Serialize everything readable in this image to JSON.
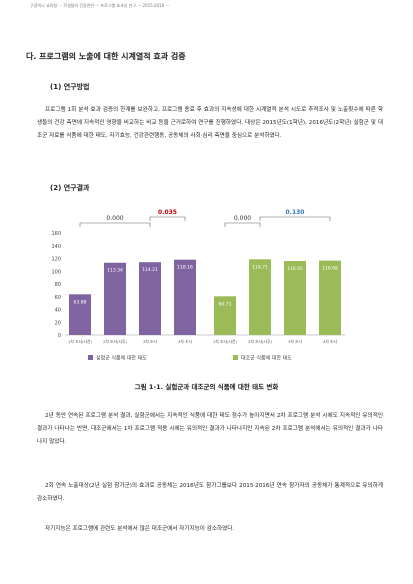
{
  "header_line": "구광역시 교육청 ··· 학생들의 건강관련 ··· 프로그램 효과성 연구 ··· 2015·2016 ···",
  "section_heading": "다. 프로그램의 노출에 대한 시계열적 효과 검증",
  "subsection1": {
    "heading": "(1) 연구방법",
    "text": "프로그램 1회 분석 효과 검증의 한계를 보완하고, 프로그램 종료 후 효과의 지속성에 대한 시계열적 분석 시도로 추적조사 및 노출횟수에 따른 학생들의 건강 측면에 지속적인 영향을 비교하는 비교 등을 근거로하여 연구를 진행하였다. 대상은 2015년도(1학년), 2016년도(2학년) 실험군 및 대조군 자료를 식품에 대한 태도, 자기효능, 건강관련행동, 공동체의 사회·심리 측면을 중심으로 분석하였다."
  },
  "subsection2": {
    "heading": "(2) 연구결과"
  },
  "chart_data": {
    "type": "bar",
    "groups": [
      {
        "name": "실험군 식품에 대한 태도",
        "color": "#8064a2",
        "categories": [
          "1차 조사(사전)",
          "2차 조사(사후)",
          "3차 조사",
          "4차 조사"
        ],
        "values": [
          63.88,
          113.34,
          114.21,
          118.16
        ],
        "value_labels": [
          "63.88",
          "113.34",
          "114.21",
          "118.16"
        ],
        "annotations": [
          {
            "text": "0.000",
            "color": "#333333",
            "from": 0,
            "to": 2
          },
          {
            "text": "0.035",
            "color": "#c00000",
            "from": 2,
            "to": 3
          }
        ]
      },
      {
        "name": "대조군 식품에 대한 태도",
        "color": "#9bbb59",
        "categories": [
          "1차 조사(사전)",
          "2차 조사(사후)",
          "3차 조사",
          "4차 조사"
        ],
        "values": [
          60.71,
          118.71,
          116.05,
          116.68
        ],
        "value_labels": [
          "60.71",
          "118.71",
          "116.05",
          "116.68"
        ],
        "annotations": [
          {
            "text": "0.000",
            "color": "#333333",
            "from": 0,
            "to": 1
          },
          {
            "text": "0.130",
            "color": "#2e75b6",
            "from": 1,
            "to": 3
          }
        ]
      }
    ],
    "ylim": [
      0,
      160
    ],
    "yticks": [
      0,
      20,
      40,
      60,
      80,
      100,
      120,
      140,
      160
    ],
    "legend_position": "bottom",
    "grid": false
  },
  "figure_caption": "그림 1-1. 실험군과 대조군의 식품에 대한 태도 변화",
  "paragraphs": [
    "2년 동안 연속된 프로그램 분석 결과, 실험군에서는 지속적인 식품에 대한 태도 점수가 높아지면서 2차 프로그램 분석 시에도 지속적인 유의적인 결과가 나타나는 반면, 대조군에서는 1차 프로그램 적용 시에는 유의적인 결과가 나타나지만 지속된 2차 프로그램 분석에서는 유의적인 결과가 나타나지 않았다.",
    "2회 연속 노출대상(2년 실험 참가군)의 효과로 공동체는 2016년도 참가그룹보다 2015·2016년 연속 참가자의 공동체가 통계적으로 유의하게 감소하였다.",
    "자기지능은 프로그램에 관련도 분석에서 많은 대조군에서 자기지능이 감소하였다."
  ]
}
